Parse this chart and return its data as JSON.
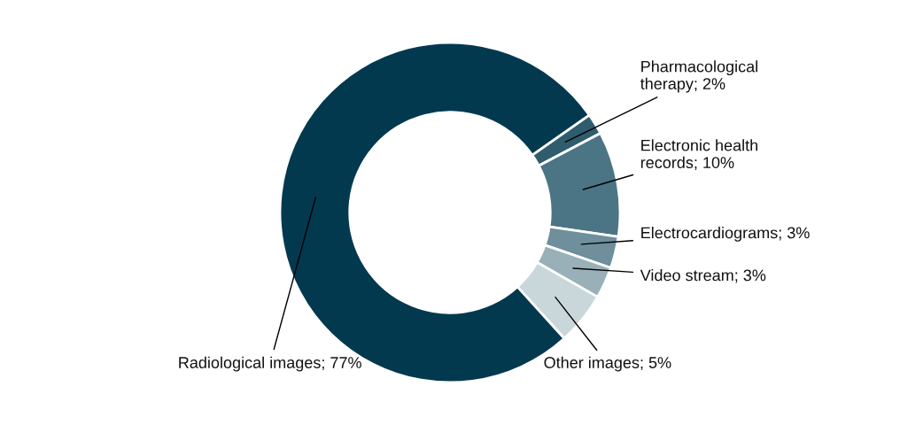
{
  "chart_data": {
    "type": "donut",
    "categories": [
      "Pharmacological therapy; 2%",
      "Electronic health records; 10%",
      "Electrocardiograms; 3%",
      "Video stream; 3%",
      "Other images; 5%",
      "Radiological images; 77%"
    ],
    "values": [
      2,
      10,
      3,
      3,
      5,
      77
    ],
    "colors": [
      "#2f5d6e",
      "#4b7584",
      "#6e8f9b",
      "#9ab0b8",
      "#c9d6da",
      "#03394f"
    ],
    "legend": false
  }
}
